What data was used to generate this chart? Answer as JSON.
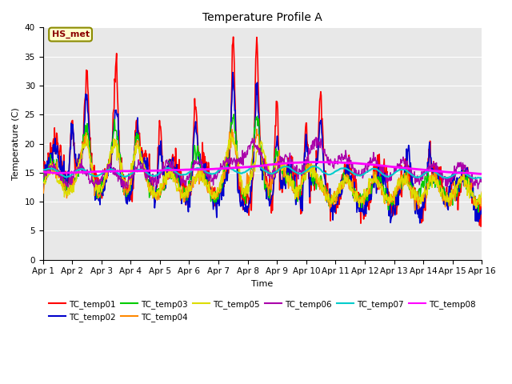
{
  "title": "Temperature Profile A",
  "xlabel": "Time",
  "ylabel": "Temperature (C)",
  "xlim": [
    0,
    15
  ],
  "ylim": [
    0,
    40
  ],
  "xtick_labels": [
    "Apr 1",
    "Apr 2",
    "Apr 3",
    "Apr 4",
    "Apr 5",
    "Apr 6",
    "Apr 7",
    "Apr 8",
    "Apr 9",
    "Apr 10",
    "Apr 11",
    "Apr 12",
    "Apr 13",
    "Apr 14",
    "Apr 15",
    "Apr 16"
  ],
  "annotation": "HS_met",
  "bg_color": "#e8e8e8",
  "series_colors": {
    "TC_temp01": "#ff0000",
    "TC_temp02": "#0000cc",
    "TC_temp03": "#00cc00",
    "TC_temp04": "#ff8800",
    "TC_temp05": "#dddd00",
    "TC_temp06": "#aa00aa",
    "TC_temp07": "#00cccc",
    "TC_temp08": "#ff00ff"
  },
  "legend_labels": [
    "TC_temp01",
    "TC_temp02",
    "TC_temp03",
    "TC_temp04",
    "TC_temp05",
    "TC_temp06",
    "TC_temp07",
    "TC_temp08"
  ]
}
